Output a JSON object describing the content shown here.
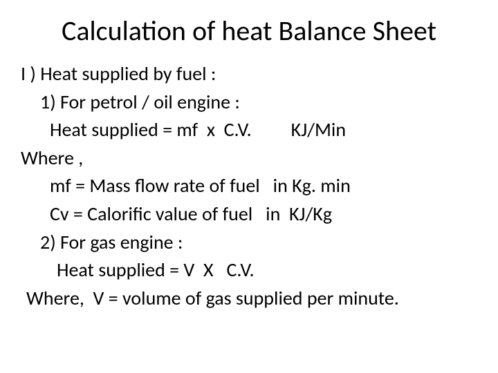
{
  "title": "Calculation of heat Balance Sheet",
  "lines": [
    {
      "text": "I ) Heat supplied by fuel :",
      "indent": "l0"
    },
    {
      "text": "1)  For petrol / oil engine :",
      "indent": "l1"
    },
    {
      "text": "Heat supplied = mf  x  C.V.         KJ/Min",
      "indent": "l2"
    },
    {
      "text": "Where ,",
      "indent": "l0"
    },
    {
      "text": "mf = Mass flow rate of fuel   in Kg. min",
      "indent": "l2"
    },
    {
      "text": "Cv = Calorific value of fuel   in  KJ/Kg",
      "indent": "l2"
    },
    {
      "text": "2) For gas engine :",
      "indent": "l1"
    },
    {
      "text": "Heat supplied = V  X   C.V.",
      "indent": "l3"
    },
    {
      "text": "Where,  V = volume of gas supplied per minute.",
      "indent": "l05"
    }
  ],
  "colors": {
    "background": "#ffffff",
    "text": "#000000"
  },
  "typography": {
    "title_fontsize": 40,
    "body_fontsize": 28,
    "font_family": "Calibri"
  }
}
